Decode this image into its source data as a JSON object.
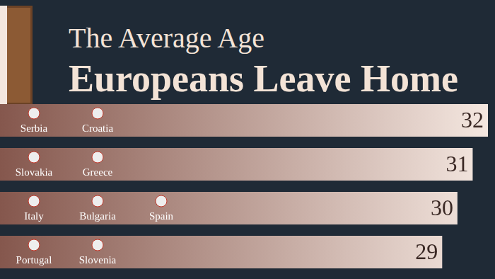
{
  "chart_data": {
    "type": "bar",
    "orientation": "horizontal",
    "title": "The Average Age",
    "subtitle": "Europeans Leave Home",
    "categories": [
      [
        "Serbia",
        "Croatia"
      ],
      [
        "Slovakia",
        "Greece"
      ],
      [
        "Italy",
        "Bulgaria",
        "Spain"
      ],
      [
        "Portugal",
        "Slovenia"
      ]
    ],
    "values": [
      32,
      31,
      30,
      29
    ],
    "color": "#85574d",
    "xlim": [
      0,
      32
    ],
    "xticks": [
      0,
      32
    ],
    "data_labels": true,
    "tick_labels": false,
    "grid": false
  }
}
